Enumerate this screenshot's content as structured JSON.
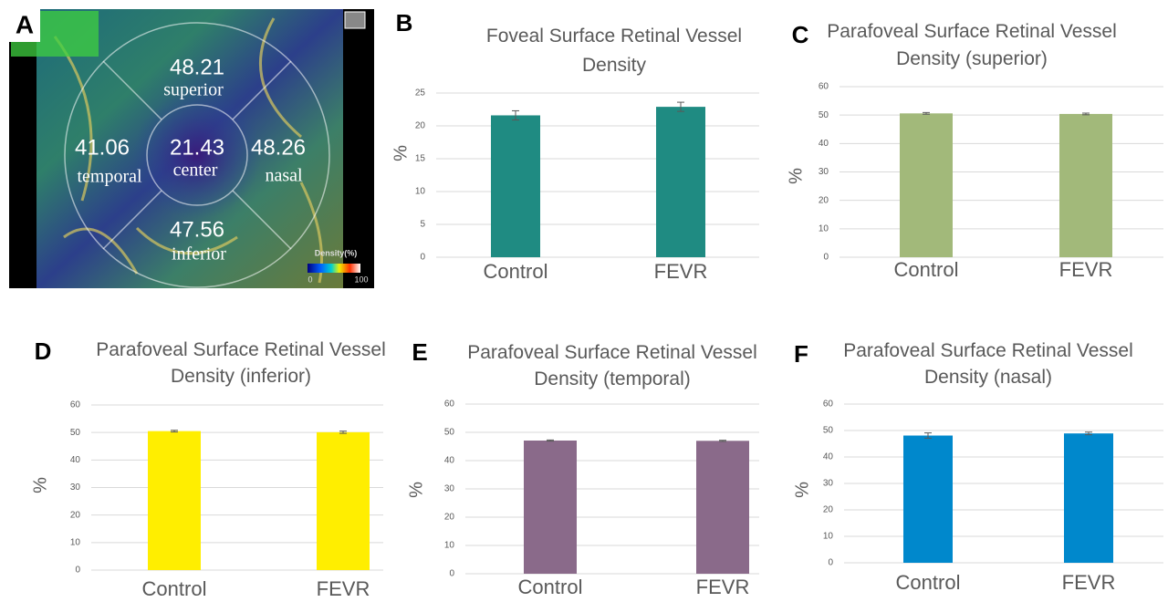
{
  "image_panel": {
    "label": "A",
    "regions": [
      {
        "value": 48.21,
        "name": "superior"
      },
      {
        "value": 41.06,
        "name": "temporal"
      },
      {
        "value": 21.43,
        "name": "center"
      },
      {
        "value": 48.26,
        "name": "nasal"
      },
      {
        "value": 47.56,
        "name": "inferior"
      }
    ],
    "legend": {
      "title": "Density(%)",
      "min": 0,
      "max": 100
    }
  },
  "chart_data": [
    {
      "type": "bar",
      "label": "B",
      "title": "Foveal Surface Retinal Vessel Density",
      "y_label": "%",
      "categories": [
        "Control",
        "FEVR"
      ],
      "values": [
        21.6,
        22.9
      ],
      "errors": [
        0.7,
        0.7
      ],
      "color": "#1f8b82",
      "ylim": [
        0,
        25
      ],
      "yticks": [
        0,
        5,
        10,
        15,
        20,
        25
      ],
      "grid": true
    },
    {
      "type": "bar",
      "label": "C",
      "title": "Parafoveal Surface Retinal Vessel Density (superior)",
      "y_label": "%",
      "categories": [
        "Control",
        "FEVR"
      ],
      "values": [
        50.6,
        50.4
      ],
      "errors": [
        0.3,
        0.3
      ],
      "color": "#a2b97a",
      "ylim": [
        0,
        60
      ],
      "yticks": [
        0,
        10,
        20,
        30,
        40,
        50,
        60
      ],
      "grid": true
    },
    {
      "type": "bar",
      "label": "D",
      "title": "Parafoveal Surface Retinal Vessel Density (inferior)",
      "y_label": "%",
      "categories": [
        "Control",
        "FEVR"
      ],
      "values": [
        50.5,
        50.1
      ],
      "errors": [
        0.3,
        0.4
      ],
      "color": "#ffee00",
      "ylim": [
        0,
        60
      ],
      "yticks": [
        0,
        10,
        20,
        30,
        40,
        50,
        60
      ],
      "grid": true
    },
    {
      "type": "bar",
      "label": "E",
      "title": "Parafoveal Surface Retinal Vessel Density (temporal)",
      "y_label": "%",
      "categories": [
        "Control",
        "FEVR"
      ],
      "values": [
        47.1,
        47.0
      ],
      "errors": [
        0.2,
        0.2
      ],
      "color": "#8a6a8a",
      "ylim": [
        0,
        60
      ],
      "yticks": [
        0,
        10,
        20,
        30,
        40,
        50,
        60
      ],
      "grid": true
    },
    {
      "type": "bar",
      "label": "F",
      "title": "Parafoveal Surface Retinal Vessel Density (nasal)",
      "y_label": "%",
      "categories": [
        "Control",
        "FEVR"
      ],
      "values": [
        48.1,
        48.9
      ],
      "errors": [
        1.0,
        0.5
      ],
      "color": "#0088cc",
      "ylim": [
        0,
        60
      ],
      "yticks": [
        0,
        10,
        20,
        30,
        40,
        50,
        60
      ],
      "grid": true
    }
  ]
}
